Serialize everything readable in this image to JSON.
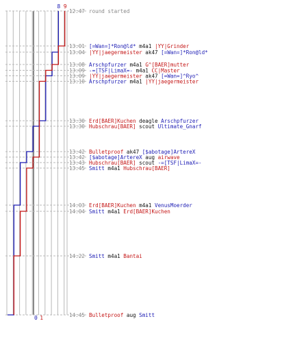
{
  "chart_data": {
    "type": "line",
    "title": "",
    "xlabel": "",
    "ylabel": "",
    "colors": {
      "blue": "#1c1cb4",
      "red": "#c41616",
      "text": "#111111",
      "muted": "#888888",
      "grid": "#b8b8b8",
      "frame": "#555555"
    },
    "series": [
      {
        "team": "blue",
        "start": 8,
        "end": 0,
        "values": [
          8,
          7,
          6,
          5,
          5,
          4,
          3,
          2,
          1,
          0
        ]
      },
      {
        "team": "red",
        "start": 9,
        "end": 1,
        "values": [
          9,
          8,
          7,
          6,
          5,
          4,
          3,
          2,
          1
        ]
      }
    ],
    "events": [
      {
        "time": "12:47",
        "segments": [
          {
            "text": "round started",
            "color": "muted"
          }
        ]
      },
      {
        "time": "13:01",
        "segments": [
          {
            "text": "[=Wan=]*Ron@ld*",
            "color": "blue"
          },
          {
            "text": " m4a1 ",
            "color": "black"
          },
          {
            "text": "|YY|Grinder",
            "color": "red"
          }
        ]
      },
      {
        "time": "13:04",
        "segments": [
          {
            "text": "|YY|jaegermeister",
            "color": "red"
          },
          {
            "text": " ak47 ",
            "color": "black"
          },
          {
            "text": "[=Wan=]*Ron@ld*",
            "color": "blue"
          }
        ]
      },
      {
        "time": "13:08",
        "segments": [
          {
            "text": "Arschpfurzer",
            "color": "blue"
          },
          {
            "text": " m4a1 ",
            "color": "black"
          },
          {
            "text": "G^[BAER]mutter",
            "color": "red"
          }
        ]
      },
      {
        "time": "13:09",
        "segments": [
          {
            "text": "-=[TSF|LimaX=-",
            "color": "blue"
          },
          {
            "text": " m4a1 ",
            "color": "black"
          },
          {
            "text": "CC|Master",
            "color": "red"
          }
        ]
      },
      {
        "time": "13:09",
        "segments": [
          {
            "text": "|YY|jaegermeister",
            "color": "red"
          },
          {
            "text": " ak47 ",
            "color": "black"
          },
          {
            "text": "[=Wan=]^Ryo^",
            "color": "blue"
          }
        ]
      },
      {
        "time": "13:10",
        "segments": [
          {
            "text": "Arschpfurzer",
            "color": "blue"
          },
          {
            "text": " m4a1 ",
            "color": "black"
          },
          {
            "text": "|YY|jaegermeister",
            "color": "red"
          }
        ]
      },
      {
        "time": "13:30",
        "segments": [
          {
            "text": "Erd[BAER]Kuchen",
            "color": "red"
          },
          {
            "text": " deagle ",
            "color": "black"
          },
          {
            "text": "Arschpfurzer",
            "color": "blue"
          }
        ]
      },
      {
        "time": "13:30",
        "segments": [
          {
            "text": "Hubschrau[BAER]",
            "color": "red"
          },
          {
            "text": " scout ",
            "color": "black"
          },
          {
            "text": "Ultimate_Gnarf",
            "color": "blue"
          }
        ]
      },
      {
        "time": "13:42",
        "segments": [
          {
            "text": "Bulletproof",
            "color": "red"
          },
          {
            "text": " ak47 ",
            "color": "black"
          },
          {
            "text": "[$abotage]ArtereX",
            "color": "blue"
          }
        ]
      },
      {
        "time": "13:42",
        "segments": [
          {
            "text": "[$abotage]ArtereX",
            "color": "blue"
          },
          {
            "text": " aug ",
            "color": "black"
          },
          {
            "text": "airwave",
            "color": "red"
          }
        ]
      },
      {
        "time": "13:43",
        "segments": [
          {
            "text": "Hubschrau[BAER]",
            "color": "red"
          },
          {
            "text": " scout ",
            "color": "black"
          },
          {
            "text": "-=[TSF|LimaX=-",
            "color": "blue"
          }
        ]
      },
      {
        "time": "13:45",
        "segments": [
          {
            "text": "Smitt",
            "color": "blue"
          },
          {
            "text": " m4a1 ",
            "color": "black"
          },
          {
            "text": "Hubschrau[BAER]",
            "color": "red"
          }
        ]
      },
      {
        "time": "14:03",
        "segments": [
          {
            "text": "Erd[BAER]Kuchen",
            "color": "red"
          },
          {
            "text": " m4a1 ",
            "color": "black"
          },
          {
            "text": "VenusMoerder",
            "color": "blue"
          }
        ]
      },
      {
        "time": "14:04",
        "segments": [
          {
            "text": "Smitt",
            "color": "blue"
          },
          {
            "text": " m4a1 ",
            "color": "black"
          },
          {
            "text": "Erd[BAER]Kuchen",
            "color": "red"
          }
        ]
      },
      {
        "time": "14:22",
        "segments": [
          {
            "text": "Smitt",
            "color": "blue"
          },
          {
            "text": " m4a1 ",
            "color": "black"
          },
          {
            "text": "Bantai",
            "color": "red"
          }
        ]
      },
      {
        "time": "14:45",
        "segments": [
          {
            "text": "Bulletproof",
            "color": "red"
          },
          {
            "text": " aug ",
            "color": "black"
          },
          {
            "text": "Smitt",
            "color": "blue"
          }
        ]
      }
    ]
  }
}
